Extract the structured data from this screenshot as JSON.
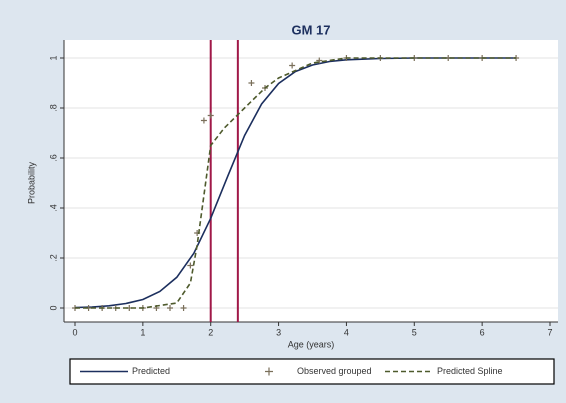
{
  "chart_data": {
    "type": "line",
    "title": "GM 17",
    "y_label": "Probability",
    "x_label": "Age (years)",
    "xlim": [
      0,
      7
    ],
    "xticks": [
      0,
      1,
      2,
      3,
      4,
      5,
      6,
      7
    ],
    "ylim": [
      0,
      1
    ],
    "yticks": [
      0,
      {
        "value": 0.2,
        "label": ".2"
      },
      {
        "value": 0.4,
        "label": ".4"
      },
      {
        "value": 0.6,
        "label": ".6"
      },
      {
        "value": 0.8,
        "label": ".8"
      },
      1
    ],
    "grid": true,
    "vlines": [
      2.0,
      2.4
    ],
    "vline_color": "#a01848",
    "series": [
      {
        "name": "Predicted",
        "color": "#1c2f5e",
        "style": "solid",
        "x": [
          0,
          0.25,
          0.5,
          0.75,
          1,
          1.25,
          1.5,
          1.75,
          2,
          2.25,
          2.5,
          2.75,
          3,
          3.25,
          3.5,
          3.75,
          4,
          4.5,
          5,
          5.5,
          6,
          6.5
        ],
        "values": [
          0.002,
          0.004,
          0.009,
          0.018,
          0.034,
          0.066,
          0.123,
          0.219,
          0.359,
          0.527,
          0.69,
          0.816,
          0.898,
          0.946,
          0.972,
          0.986,
          0.993,
          0.998,
          1,
          1,
          1,
          1
        ]
      },
      {
        "name": "Observed grouped",
        "color": "#7a6f5a",
        "style": "marker",
        "x": [
          0,
          0.2,
          0.4,
          0.6,
          0.8,
          1,
          1.2,
          1.4,
          1.6,
          1.7,
          1.8,
          1.9,
          2,
          2.6,
          2.8,
          3.2,
          3.6,
          4,
          4.5,
          5,
          5.5,
          6,
          6.5
        ],
        "values": [
          0,
          0,
          0,
          0,
          0,
          0,
          0,
          0,
          0,
          0.17,
          0.3,
          0.75,
          0.77,
          0.9,
          0.88,
          0.97,
          0.99,
          1,
          1,
          1,
          1,
          1,
          1
        ]
      },
      {
        "name": "Predicted Spline",
        "color": "#4e5a2c",
        "style": "dashed",
        "x": [
          0,
          1,
          1.5,
          1.7,
          1.8,
          1.9,
          2,
          2.2,
          2.5,
          2.8,
          3,
          3.5,
          4,
          5,
          6.5
        ],
        "values": [
          0,
          0,
          0.02,
          0.1,
          0.25,
          0.45,
          0.65,
          0.72,
          0.8,
          0.88,
          0.92,
          0.98,
          1,
          1,
          1
        ]
      }
    ]
  }
}
